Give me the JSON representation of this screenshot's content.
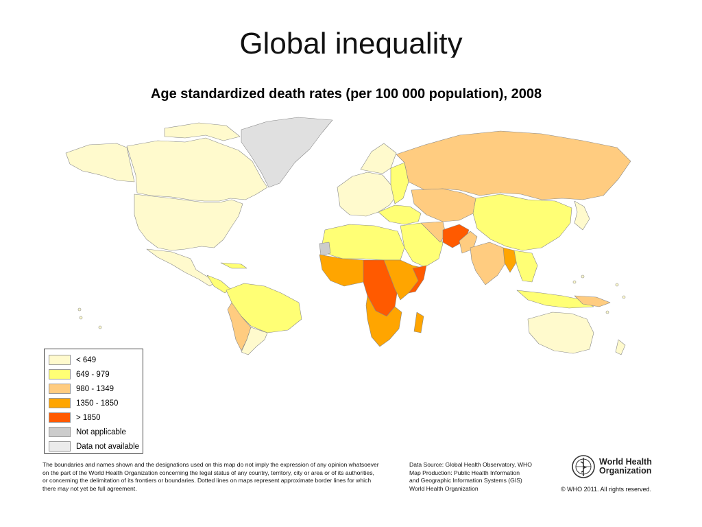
{
  "slide": {
    "title": "Global inequality"
  },
  "map": {
    "title": "Age standardized death rates (per 100 000 population), 2008"
  },
  "colors": {
    "lt649": "#fffacd",
    "r649_979": "#ffff75",
    "r980_1349": "#ffcc80",
    "r1350_1850": "#ffa500",
    "gt1850": "#ff5a00",
    "not_applicable": "#cccccc",
    "not_available": "#ebebeb",
    "border": "#888888"
  },
  "legend": {
    "items": [
      {
        "label": "< 649",
        "color": "#fffacd"
      },
      {
        "label": "649 - 979",
        "color": "#ffff75"
      },
      {
        "label": "980 - 1349",
        "color": "#ffcc80"
      },
      {
        "label": "1350 - 1850",
        "color": "#ffa500"
      },
      {
        "label": "> 1850",
        "color": "#ff5a00"
      },
      {
        "label": "Not applicable",
        "color": "#cccccc"
      },
      {
        "label": "Data not available",
        "color": "#ebebeb"
      }
    ]
  },
  "footer": {
    "disclaimer_lines": [
      "The boundaries and names shown and the designations used on this map do not imply the expression of any opinion whatsoever",
      "on the part of the World Health Organization concerning the legal status of any country, territory, city or area or of its authorities,",
      "or concerning the delimitation of its frontiers or boundaries.  Dotted lines on maps represent approximate border lines for which",
      "there may not yet be full agreement."
    ],
    "source_lines": [
      "Data Source: Global Health Observatory, WHO",
      "Map Production: Public Health Information",
      "and Geographic Information Systems (GIS)",
      "World Health Organization"
    ],
    "who_name_line1": "World Health",
    "who_name_line2": "Organization",
    "copyright": "© WHO 2011. All rights reserved."
  }
}
